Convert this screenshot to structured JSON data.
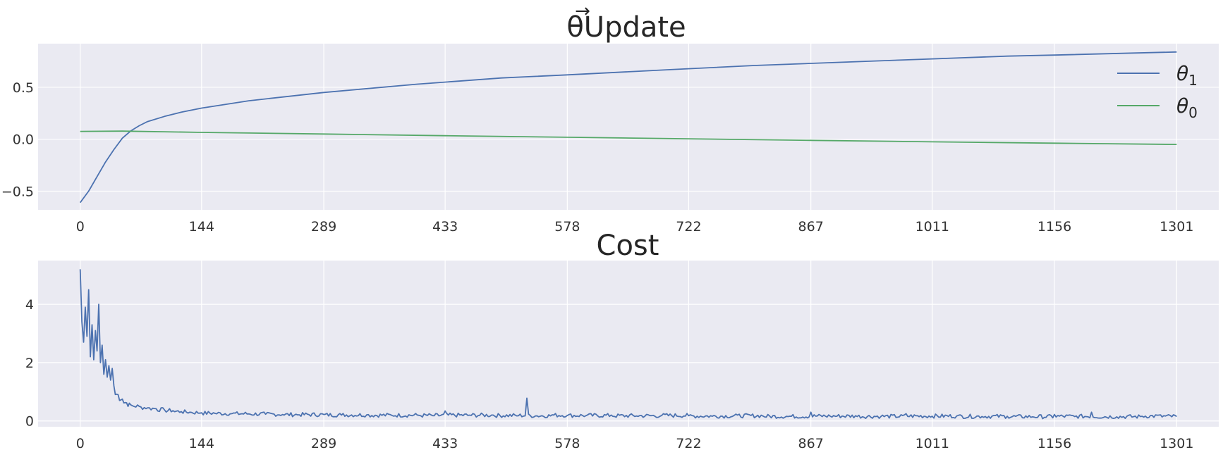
{
  "colors": {
    "background": "#ffffff",
    "plot_background": "#eaeaf2",
    "grid": "#ffffff",
    "series_blue": "#4c72b0",
    "series_green": "#55a868",
    "text": "#262626"
  },
  "chart_data": [
    {
      "type": "line",
      "title": "θUpdate",
      "title_accent": "→",
      "xlabel": "",
      "ylabel": "",
      "xlim": [
        -50,
        1351
      ],
      "ylim": [
        -0.68,
        0.92
      ],
      "xticks": [
        0,
        144,
        289,
        433,
        578,
        722,
        867,
        1011,
        1156,
        1301
      ],
      "yticks": [
        -0.5,
        0.0,
        0.5
      ],
      "ytick_labels": [
        "−0.5",
        "0.0",
        "0.5"
      ],
      "grid": true,
      "legend": "top-right",
      "series": [
        {
          "name": "θ",
          "name_subscript": "1",
          "color": "#4c72b0",
          "x": [
            0,
            10,
            20,
            30,
            40,
            50,
            60,
            70,
            80,
            100,
            120,
            144,
            200,
            289,
            400,
            500,
            578,
            700,
            800,
            867,
            1000,
            1100,
            1156,
            1250,
            1301
          ],
          "y": [
            -0.61,
            -0.5,
            -0.36,
            -0.22,
            -0.1,
            0.01,
            0.08,
            0.13,
            0.17,
            0.22,
            0.26,
            0.3,
            0.37,
            0.45,
            0.53,
            0.59,
            0.62,
            0.67,
            0.71,
            0.73,
            0.77,
            0.8,
            0.81,
            0.83,
            0.84
          ]
        },
        {
          "name": "θ",
          "name_subscript": "0",
          "color": "#55a868",
          "x": [
            0,
            50,
            100,
            144,
            289,
            433,
            578,
            722,
            867,
            1011,
            1156,
            1301
          ],
          "y": [
            0.075,
            0.078,
            0.072,
            0.066,
            0.05,
            0.034,
            0.019,
            0.004,
            -0.011,
            -0.025,
            -0.038,
            -0.05
          ]
        }
      ]
    },
    {
      "type": "line",
      "title": "Cost",
      "xlabel": "",
      "ylabel": "",
      "xlim": [
        -50,
        1351
      ],
      "ylim": [
        -0.2,
        5.5
      ],
      "xticks": [
        0,
        144,
        289,
        433,
        578,
        722,
        867,
        1011,
        1156,
        1301
      ],
      "yticks": [
        0,
        2,
        4
      ],
      "ytick_labels": [
        "0",
        "2",
        "4"
      ],
      "grid": true,
      "series": [
        {
          "name": "",
          "color": "#4c72b0",
          "x": [
            0,
            2,
            4,
            6,
            8,
            10,
            12,
            14,
            16,
            18,
            20,
            22,
            24,
            26,
            28,
            30,
            32,
            34,
            36,
            38,
            40,
            45,
            50,
            55,
            60,
            70,
            80,
            90,
            100,
            110,
            120,
            130,
            144,
            160,
            180,
            200,
            220,
            240,
            260,
            289,
            310,
            340,
            370,
            400,
            420,
            433,
            460,
            490,
            520,
            530,
            540,
            560,
            578,
            600,
            630,
            660,
            690,
            722,
            750,
            780,
            810,
            840,
            867,
            890,
            920,
            950,
            980,
            1011,
            1040,
            1070,
            1100,
            1130,
            1156,
            1180,
            1200,
            1230,
            1260,
            1280,
            1301
          ],
          "y": [
            5.2,
            3.4,
            2.7,
            3.9,
            2.9,
            4.5,
            2.2,
            3.3,
            2.1,
            3.1,
            2.4,
            4.0,
            2.0,
            2.6,
            1.6,
            2.1,
            1.5,
            1.9,
            1.4,
            1.8,
            1.2,
            0.9,
            0.75,
            0.62,
            0.55,
            0.5,
            0.45,
            0.42,
            0.38,
            0.35,
            0.32,
            0.3,
            0.28,
            0.26,
            0.25,
            0.24,
            0.23,
            0.22,
            0.21,
            0.22,
            0.2,
            0.21,
            0.19,
            0.2,
            0.18,
            0.34,
            0.19,
            0.2,
            0.18,
            0.78,
            0.17,
            0.21,
            0.19,
            0.18,
            0.2,
            0.17,
            0.19,
            0.18,
            0.16,
            0.2,
            0.17,
            0.15,
            0.3,
            0.16,
            0.18,
            0.15,
            0.25,
            0.16,
            0.17,
            0.15,
            0.16,
            0.14,
            0.22,
            0.15,
            0.3,
            0.14,
            0.16,
            0.2,
            0.15
          ]
        }
      ]
    }
  ]
}
